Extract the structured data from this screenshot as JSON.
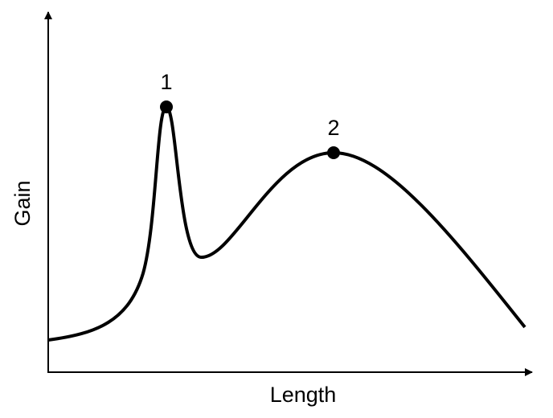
{
  "axes": {
    "x_label": "Length",
    "y_label": "Gain"
  },
  "points": [
    {
      "label": "1"
    },
    {
      "label": "2"
    }
  ]
}
